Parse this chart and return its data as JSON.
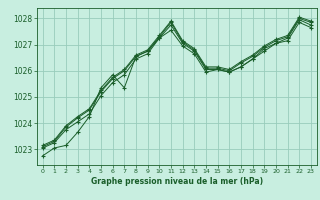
{
  "title": "Graphe pression niveau de la mer (hPa)",
  "bg_color": "#c8eee0",
  "grid_color": "#99ccbb",
  "line_color": "#1a5e2a",
  "xlim": [
    -0.5,
    23.5
  ],
  "ylim": [
    1022.4,
    1028.4
  ],
  "yticks": [
    1023,
    1024,
    1025,
    1026,
    1027,
    1028
  ],
  "xticks": [
    0,
    1,
    2,
    3,
    4,
    5,
    6,
    7,
    8,
    9,
    10,
    11,
    12,
    13,
    14,
    15,
    16,
    17,
    18,
    19,
    20,
    21,
    22,
    23
  ],
  "series": [
    [
      1022.75,
      1023.05,
      1023.15,
      1023.65,
      1024.25,
      1025.35,
      1025.85,
      1025.35,
      1026.55,
      1026.75,
      1027.25,
      1027.55,
      1026.95,
      1026.65,
      1025.95,
      1026.05,
      1025.95,
      1026.15,
      1026.45,
      1026.75,
      1027.05,
      1027.15,
      1027.85,
      1027.65
    ],
    [
      1023.05,
      1023.25,
      1023.75,
      1024.05,
      1024.35,
      1025.05,
      1025.55,
      1025.85,
      1026.45,
      1026.65,
      1027.25,
      1027.75,
      1027.05,
      1026.75,
      1026.05,
      1026.05,
      1025.95,
      1026.15,
      1026.45,
      1026.85,
      1027.05,
      1027.25,
      1027.95,
      1027.75
    ],
    [
      1023.1,
      1023.3,
      1023.85,
      1024.2,
      1024.5,
      1025.2,
      1025.7,
      1026.0,
      1026.55,
      1026.75,
      1027.3,
      1027.85,
      1027.1,
      1026.8,
      1026.1,
      1026.1,
      1026.0,
      1026.3,
      1026.55,
      1026.9,
      1027.15,
      1027.3,
      1028.0,
      1027.85
    ],
    [
      1023.15,
      1023.35,
      1023.9,
      1024.25,
      1024.55,
      1025.25,
      1025.75,
      1026.05,
      1026.6,
      1026.8,
      1027.35,
      1027.9,
      1027.15,
      1026.85,
      1026.15,
      1026.15,
      1026.05,
      1026.35,
      1026.6,
      1026.95,
      1027.2,
      1027.35,
      1028.05,
      1027.9
    ]
  ]
}
